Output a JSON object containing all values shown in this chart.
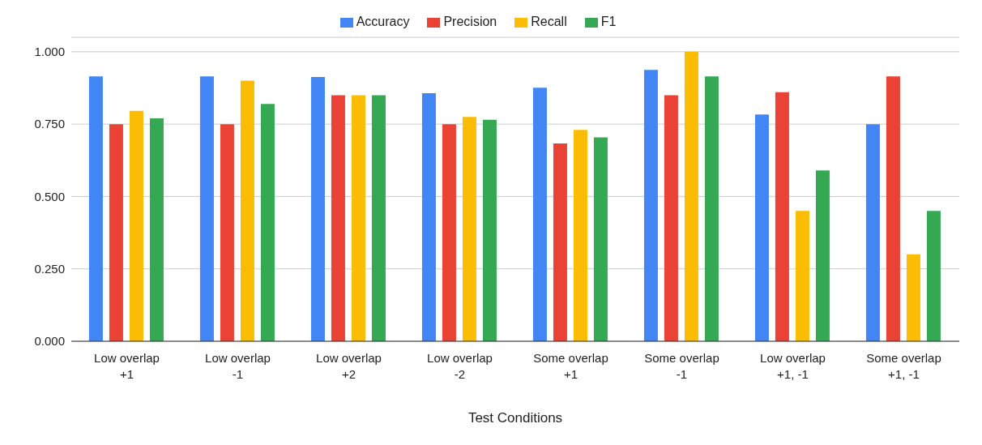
{
  "chart_data": {
    "type": "bar",
    "xlabel": "Test Conditions",
    "categories": [
      "Low overlap\n+1",
      "Low overlap\n-1",
      "Low overlap\n+2",
      "Low overlap\n-2",
      "Some overlap\n+1",
      "Some overlap\n-1",
      "Low overlap\n+1, -1",
      "Some overlap\n+1, -1"
    ],
    "series": [
      {
        "name": "Accuracy",
        "color": "#4285f4",
        "values": [
          0.915,
          0.915,
          0.913,
          0.857,
          0.876,
          0.937,
          0.783,
          0.75
        ]
      },
      {
        "name": "Precision",
        "color": "#ea4335",
        "values": [
          0.75,
          0.75,
          0.85,
          0.75,
          0.683,
          0.85,
          0.86,
          0.915
        ]
      },
      {
        "name": "Recall",
        "color": "#fbbc04",
        "values": [
          0.796,
          0.9,
          0.85,
          0.775,
          0.73,
          1.0,
          0.45,
          0.3
        ]
      },
      {
        "name": "F1",
        "color": "#34a853",
        "values": [
          0.77,
          0.82,
          0.85,
          0.765,
          0.704,
          0.915,
          0.59,
          0.45
        ]
      }
    ],
    "ylim": [
      0,
      1.05
    ],
    "yticks": [
      {
        "value": 0,
        "label": "0.000"
      },
      {
        "value": 0.25,
        "label": "0.250"
      },
      {
        "value": 0.5,
        "label": "0.500"
      },
      {
        "value": 0.75,
        "label": "0.750"
      },
      {
        "value": 1,
        "label": "1.000"
      }
    ],
    "grid": "y",
    "legend": "top"
  }
}
